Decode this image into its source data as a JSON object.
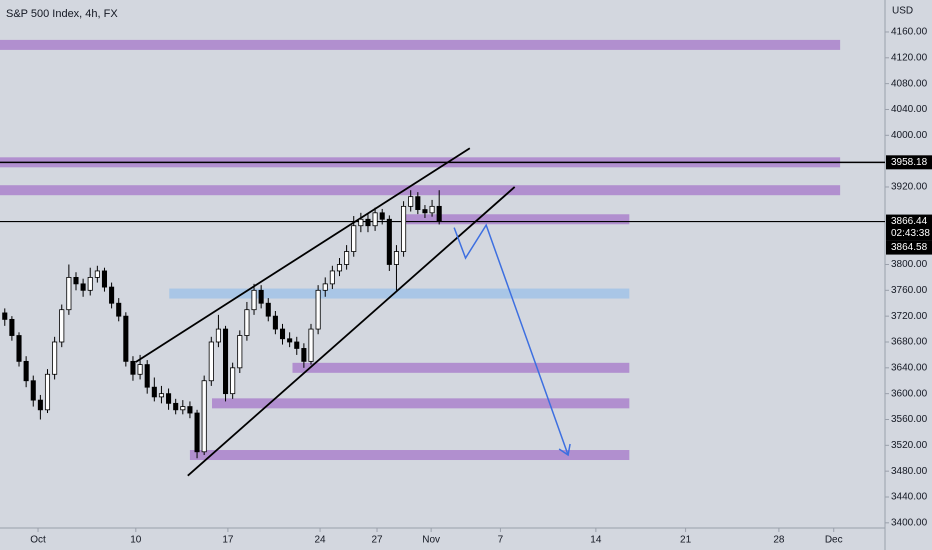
{
  "chart_data": {
    "type": "candlestick",
    "title": "S&P 500 Index, 4h, FX",
    "currency": "USD",
    "xlim": [
      -0.67,
      123.6
    ],
    "ylim": [
      3392,
      4209.5
    ],
    "xticks": [
      {
        "value": 4.67,
        "label": "Oct"
      },
      {
        "value": 18.4,
        "label": "10"
      },
      {
        "value": 31.33,
        "label": "17"
      },
      {
        "value": 44.27,
        "label": "24"
      },
      {
        "value": 52.27,
        "label": "27"
      },
      {
        "value": 59.87,
        "label": "Nov"
      },
      {
        "value": 69.6,
        "label": "7"
      },
      {
        "value": 83,
        "label": "14"
      },
      {
        "value": 95.6,
        "label": "21"
      },
      {
        "value": 108.7,
        "label": "28"
      },
      {
        "value": 116.4,
        "label": "Dec"
      }
    ],
    "yticks": [
      {
        "value": 4160,
        "label": "4160.00"
      },
      {
        "value": 4120,
        "label": "4120.00"
      },
      {
        "value": 4080,
        "label": "4080.00"
      },
      {
        "value": 4040,
        "label": "4040.00"
      },
      {
        "value": 4000,
        "label": "4000.00"
      },
      {
        "value": 3920,
        "label": "3920.00"
      },
      {
        "value": 3800,
        "label": "3800.00"
      },
      {
        "value": 3760,
        "label": "3760.00"
      },
      {
        "value": 3720,
        "label": "3720.00"
      },
      {
        "value": 3680,
        "label": "3680.00"
      },
      {
        "value": 3640,
        "label": "3640.00"
      },
      {
        "value": 3600,
        "label": "3600.00"
      },
      {
        "value": 3560,
        "label": "3560.00"
      },
      {
        "value": 3520,
        "label": "3520.00"
      },
      {
        "value": 3480,
        "label": "3480.00"
      },
      {
        "value": 3440,
        "label": "3440.00"
      },
      {
        "value": 3400,
        "label": "3400.00"
      }
    ],
    "grid": false,
    "up_color": "#ffffff",
    "down_color": "#000000",
    "open": [
      3725,
      3715,
      3690,
      3650,
      3620,
      3590,
      3575,
      3630,
      3680,
      3730,
      3780,
      3770,
      3760,
      3780,
      3790,
      3765,
      3740,
      3720,
      3650,
      3630,
      3645,
      3610,
      3595,
      3600,
      3585,
      3575,
      3580,
      3570,
      3510,
      3620,
      3680,
      3700,
      3600,
      3640,
      3690,
      3730,
      3760,
      3740,
      3720,
      3700,
      3685,
      3680,
      3670,
      3650,
      3700,
      3760,
      3770,
      3790,
      3800,
      3820,
      3860,
      3870,
      3860,
      3880,
      3870,
      3800,
      3820,
      3890,
      3905,
      3885,
      3880,
      3890
    ],
    "high": [
      3732,
      3720,
      3695,
      3658,
      3628,
      3598,
      3638,
      3688,
      3738,
      3800,
      3788,
      3778,
      3795,
      3798,
      3795,
      3772,
      3748,
      3726,
      3658,
      3660,
      3652,
      3625,
      3612,
      3608,
      3592,
      3590,
      3588,
      3575,
      3628,
      3688,
      3722,
      3705,
      3648,
      3698,
      3742,
      3770,
      3768,
      3748,
      3728,
      3708,
      3695,
      3688,
      3678,
      3708,
      3768,
      3780,
      3798,
      3810,
      3830,
      3875,
      3880,
      3878,
      3888,
      3886,
      3876,
      3830,
      3898,
      3915,
      3912,
      3892,
      3900,
      3915
    ],
    "low": [
      3705,
      3682,
      3642,
      3610,
      3580,
      3560,
      3570,
      3622,
      3672,
      3722,
      3760,
      3750,
      3752,
      3772,
      3758,
      3732,
      3712,
      3642,
      3620,
      3622,
      3600,
      3588,
      3585,
      3575,
      3568,
      3568,
      3562,
      3500,
      3505,
      3612,
      3672,
      3588,
      3592,
      3632,
      3682,
      3722,
      3732,
      3712,
      3692,
      3676,
      3672,
      3660,
      3640,
      3645,
      3692,
      3750,
      3762,
      3782,
      3792,
      3812,
      3850,
      3850,
      3852,
      3862,
      3790,
      3760,
      3812,
      3882,
      3878,
      3872,
      3874,
      3862
    ],
    "close": [
      3715,
      3690,
      3650,
      3620,
      3590,
      3575,
      3630,
      3680,
      3730,
      3780,
      3770,
      3760,
      3780,
      3790,
      3765,
      3740,
      3720,
      3650,
      3630,
      3645,
      3610,
      3595,
      3600,
      3585,
      3575,
      3580,
      3570,
      3510,
      3620,
      3680,
      3700,
      3600,
      3640,
      3690,
      3730,
      3760,
      3740,
      3720,
      3700,
      3685,
      3680,
      3670,
      3650,
      3700,
      3760,
      3770,
      3790,
      3800,
      3820,
      3860,
      3870,
      3860,
      3880,
      3870,
      3800,
      3820,
      3890,
      3905,
      3885,
      3880,
      3890,
      3866.44
    ],
    "zones": [
      {
        "price": 4140,
        "from": -1,
        "to": 117.3,
        "color": "#b18fcf"
      },
      {
        "price": 3958.18,
        "from": -1,
        "to": 117.3,
        "color": "#b18fcf"
      },
      {
        "price": 3915,
        "from": -1,
        "to": 117.3,
        "color": "#b18fcf"
      },
      {
        "price": 3870,
        "from": 56,
        "to": 87.7,
        "color": "#b18fcf"
      },
      {
        "price": 3755,
        "from": 23.1,
        "to": 87.7,
        "color": "#a9c6e6"
      },
      {
        "price": 3640,
        "from": 40.4,
        "to": 87.7,
        "color": "#b18fcf"
      },
      {
        "price": 3585,
        "from": 29.1,
        "to": 87.7,
        "color": "#b18fcf"
      },
      {
        "price": 3505,
        "from": 26,
        "to": 87.7,
        "color": "#b18fcf"
      }
    ],
    "trendlines": [
      {
        "x": [
          18.4,
          65.3
        ],
        "y": [
          3649,
          3980
        ]
      },
      {
        "x": [
          25.7,
          71.6
        ],
        "y": [
          3473,
          3920
        ]
      }
    ],
    "projection": {
      "color": "#3d6fe0",
      "x": [
        63.1,
        64.7,
        67.6,
        79.1
      ],
      "y": [
        3857,
        3810,
        3861,
        3505
      ]
    },
    "level": 3958.18,
    "last_price": 3866.44,
    "countdown": "02:43:38",
    "bid": 3864.58
  }
}
